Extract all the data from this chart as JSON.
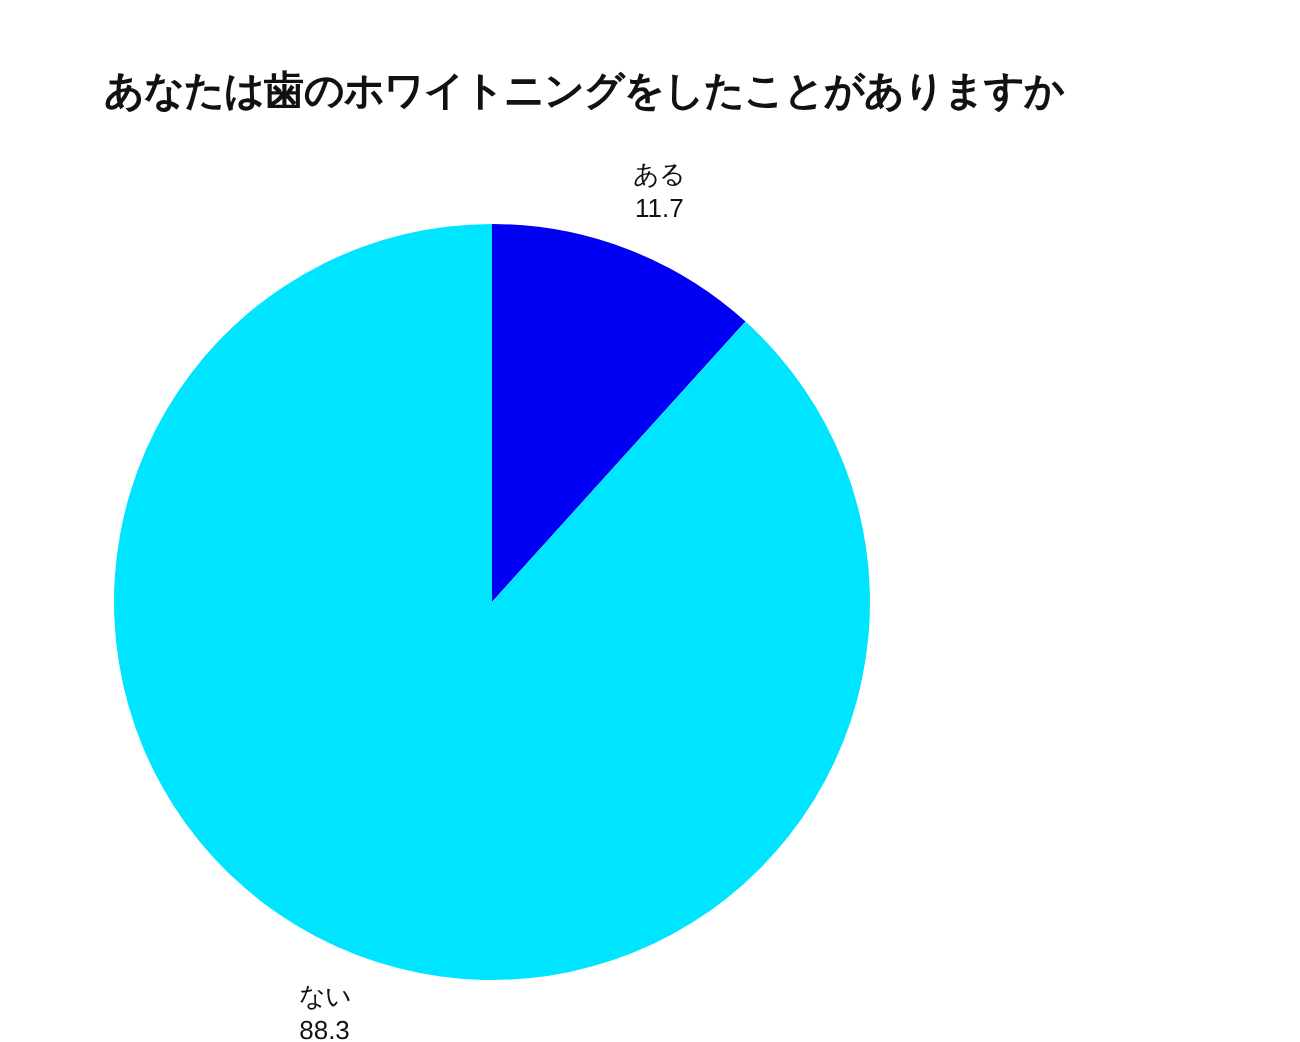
{
  "chart_data": {
    "type": "pie",
    "title": "あなたは歯のホワイトニングをしたことがありますか",
    "categories": [
      "ある",
      "ない"
    ],
    "values": [
      11.7,
      88.3
    ],
    "colors": [
      "#0000f5",
      "#00e5ff"
    ],
    "data_labels": true
  }
}
